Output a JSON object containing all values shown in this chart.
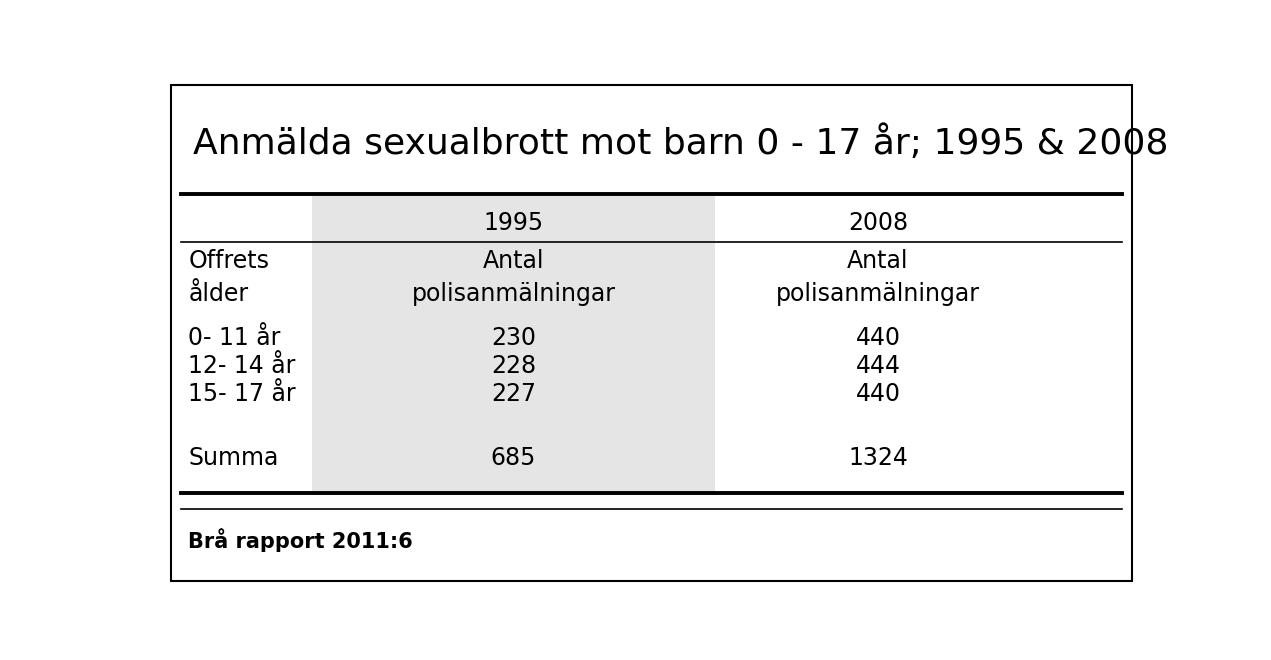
{
  "title": "Anmälda sexualbrott mot barn 0 - 17 år; 1995 & 2008",
  "title_fontsize": 26,
  "col_headers": [
    "",
    "1995",
    "2008"
  ],
  "sub_headers": [
    "Offrets\nålder",
    "Antal\npolisanmälningar",
    "Antal\npolisanmälningar"
  ],
  "rows": [
    [
      "0- 11 år",
      "230",
      "440"
    ],
    [
      "12- 14 år",
      "228",
      "444"
    ],
    [
      "15- 17 år",
      "227",
      "440"
    ]
  ],
  "sum_row": [
    "Summa",
    "685",
    "1324"
  ],
  "footer": "Brå rapport 2011:6",
  "bg_color": "#ffffff",
  "shade_color": "#e5e5e5",
  "text_color": "#000000",
  "border_color": "#000000",
  "data_fontsize": 17,
  "header_fontsize": 17,
  "footer_fontsize": 15
}
